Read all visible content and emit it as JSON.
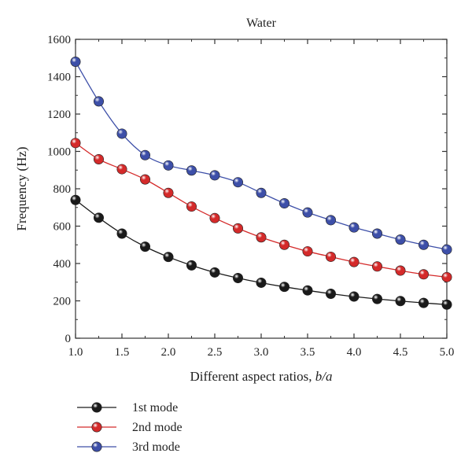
{
  "chart_data": {
    "type": "line",
    "title": "Water",
    "xlabel_prefix": "Different aspect ratios, ",
    "xlabel_var": "b/a",
    "ylabel": "Frequency (Hz)",
    "xlim": [
      1.0,
      5.0
    ],
    "ylim": [
      0,
      1600
    ],
    "xticks": [
      "1.0",
      "1.5",
      "2.0",
      "2.5",
      "3.0",
      "3.5",
      "4.0",
      "4.5",
      "5.0"
    ],
    "yticks": [
      "0",
      "200",
      "400",
      "600",
      "800",
      "1000",
      "1200",
      "1400",
      "1600"
    ],
    "grid": false,
    "legend_position": "bottom-left",
    "x": [
      1.0,
      1.25,
      1.5,
      1.75,
      2.0,
      2.25,
      2.5,
      2.75,
      3.0,
      3.25,
      3.5,
      3.75,
      4.0,
      4.25,
      4.5,
      4.75,
      5.0
    ],
    "series": [
      {
        "name": "1st mode",
        "color": "#1a1a1a",
        "values": [
          740,
          645,
          560,
          490,
          435,
          390,
          352,
          322,
          297,
          275,
          256,
          238,
          223,
          210,
          199,
          189,
          180
        ]
      },
      {
        "name": "2nd mode",
        "color": "#d42a2a",
        "values": [
          1045,
          958,
          905,
          850,
          778,
          705,
          643,
          588,
          540,
          500,
          465,
          436,
          408,
          384,
          362,
          342,
          327
        ]
      },
      {
        "name": "3rd mode",
        "color": "#3d4fa8",
        "values": [
          1480,
          1268,
          1095,
          980,
          925,
          898,
          872,
          835,
          778,
          722,
          673,
          632,
          593,
          560,
          528,
          500,
          475
        ]
      }
    ]
  }
}
